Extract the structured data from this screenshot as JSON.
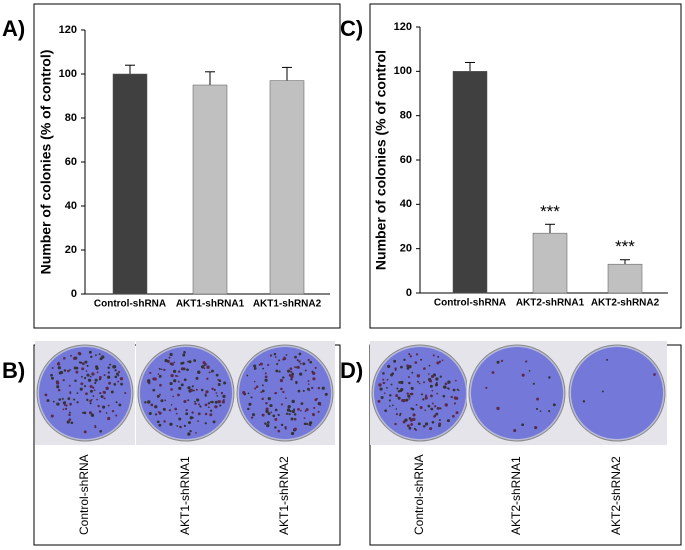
{
  "chart_data": [
    {
      "type": "bar",
      "panel": "A)",
      "ylabel": "Number of colonies (% of control)",
      "categories": [
        "Control-shRNA",
        "AKT1-shRNA1",
        "AKT1-shRNA2"
      ],
      "values": [
        100,
        95,
        97
      ],
      "errors": [
        4,
        6,
        6
      ],
      "colors": [
        "#404040",
        "#c0c0c0",
        "#c0c0c0"
      ],
      "ylim": [
        0,
        120
      ],
      "yticks": [
        0,
        20,
        40,
        60,
        80,
        100,
        120
      ]
    },
    {
      "type": "bar",
      "panel": "C)",
      "ylabel": "Number of colonies (% of control",
      "categories": [
        "Control-shRNA",
        "AKT2-shRNA1",
        "AKT2-shRNA2"
      ],
      "values": [
        100,
        27,
        13
      ],
      "errors": [
        4,
        4,
        2
      ],
      "significance": [
        null,
        "***",
        "***"
      ],
      "colors": [
        "#404040",
        "#c0c0c0",
        "#c0c0c0"
      ],
      "ylim": [
        0,
        120
      ],
      "yticks": [
        0,
        20,
        40,
        60,
        80,
        100,
        120
      ]
    }
  ],
  "images": [
    {
      "panel": "B)",
      "labels": [
        "Control-shRNA",
        "AKT1-shRNA1",
        "AKT1-shRNA2"
      ]
    },
    {
      "panel": "D)",
      "labels": [
        "Control-shRNA",
        "AKT2-shRNA1",
        "AKT2-shRNA2"
      ]
    }
  ]
}
